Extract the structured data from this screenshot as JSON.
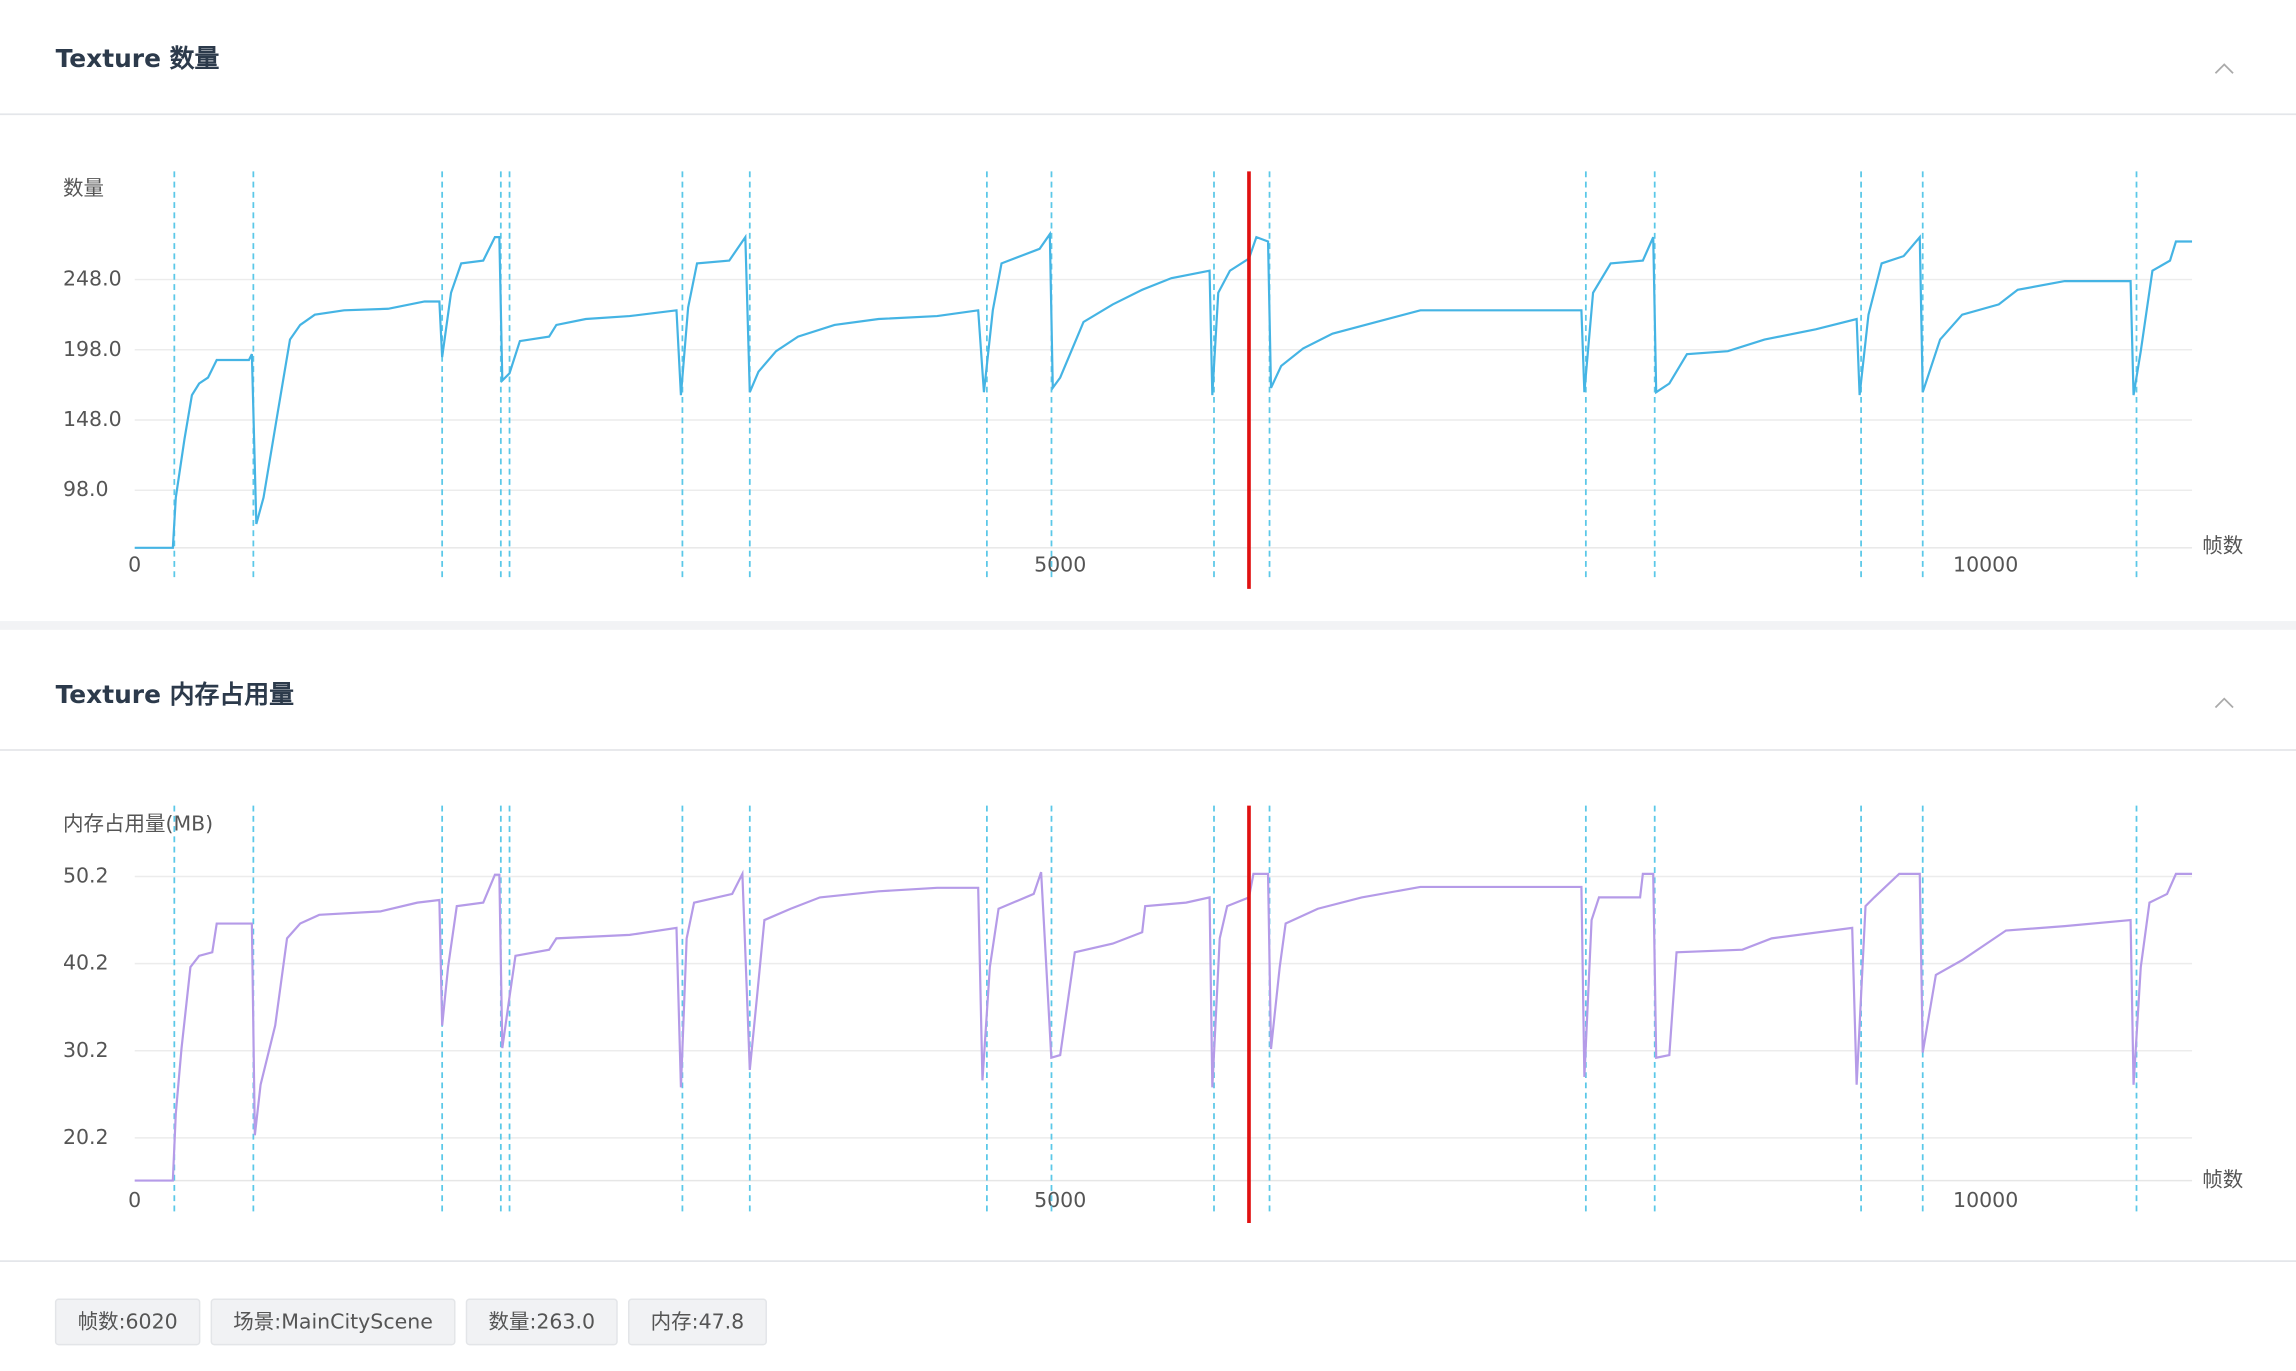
{
  "chart_data": [
    {
      "type": "line",
      "title": "Texture 数量",
      "y_label": "数量",
      "x_label": "帧数",
      "xlim": [
        0,
        11115
      ],
      "xticks": [
        0,
        5000,
        10000
      ],
      "ylim": [
        57,
        300
      ],
      "yticks": [
        {
          "value": 98,
          "label": "98.0"
        },
        {
          "value": 148,
          "label": "148.0"
        },
        {
          "value": 198,
          "label": "198.0"
        },
        {
          "value": 248,
          "label": "248.0"
        }
      ],
      "grid": true,
      "marker_color": "#5bc8e8",
      "cursor": 6020,
      "cursor_color": "#e01010",
      "markers": [
        214,
        641,
        1661,
        1978,
        2025,
        2959,
        3323,
        4604,
        4953,
        5831,
        6131,
        7840,
        8212,
        9327,
        9660,
        10815
      ],
      "series": [
        {
          "color": "#45b4e4",
          "x": [
            0,
            206,
            222,
            269,
            309,
            348,
            396,
            443,
            617,
            633,
            657,
            696,
            775,
            839,
            894,
            973,
            1131,
            1369,
            1566,
            1646,
            1661,
            1709,
            1764,
            1883,
            1946,
            1970,
            1986,
            2025,
            2081,
            2239,
            2278,
            2437,
            2674,
            2927,
            2951,
            2990,
            3038,
            3212,
            3299,
            3323,
            3370,
            3465,
            3584,
            3781,
            4019,
            4335,
            4557,
            4588,
            4636,
            4683,
            4889,
            4944,
            4960,
            5000,
            5126,
            5284,
            5443,
            5601,
            5807,
            5822,
            5854,
            5917,
            6020,
            6060,
            6123,
            6139,
            6194,
            6313,
            6471,
            6709,
            6946,
            7816,
            7832,
            7879,
            7974,
            8148,
            8204,
            8220,
            8291,
            8386,
            8607,
            8805,
            9082,
            9303,
            9319,
            9367,
            9438,
            9557,
            9644,
            9660,
            9754,
            9873,
            10071,
            10173,
            10427,
            10783,
            10799,
            10838,
            10901,
            10996,
            11028,
            11115
          ],
          "values": [
            57,
            57,
            92.8,
            134.5,
            165.7,
            174,
            178.2,
            190.7,
            190.7,
            194.9,
            74,
            92.8,
            155.3,
            205.3,
            215.7,
            223,
            226.1,
            227.2,
            232.4,
            232.4,
            192.8,
            238.6,
            259.5,
            261.5,
            278.2,
            278.2,
            176.1,
            181.3,
            204.2,
            207.4,
            215.7,
            219.9,
            222,
            226.1,
            165.7,
            228.2,
            259.5,
            261.5,
            278.2,
            167.8,
            182.4,
            197,
            207.4,
            215.7,
            219.9,
            222,
            226.1,
            167.8,
            226.1,
            259.5,
            269.9,
            280.3,
            170.9,
            178.2,
            217.8,
            230.3,
            240.7,
            249,
            254.3,
            165.7,
            238.6,
            254.3,
            263,
            278.2,
            275.1,
            170.9,
            186.5,
            199,
            209.5,
            217.8,
            226.1,
            226.1,
            167.8,
            238.6,
            259.5,
            261.5,
            278.2,
            167.8,
            174,
            194.9,
            197,
            205.3,
            212.6,
            219.9,
            165.7,
            223,
            259.5,
            264.7,
            278.2,
            167.8,
            205.3,
            223,
            230.3,
            240.7,
            246.9,
            246.9,
            165.7,
            197,
            254.3,
            261.5,
            275.1,
            275.1
          ]
        }
      ]
    },
    {
      "type": "line",
      "title": "Texture 内存占用量",
      "y_label": "内存占用量(MB)",
      "x_label": "帧数",
      "xlim": [
        0,
        11115
      ],
      "xticks": [
        0,
        5000,
        10000
      ],
      "ylim": [
        15.3,
        58
      ],
      "yticks": [
        20.2,
        30.2,
        40.2,
        50.2
      ],
      "grid": true,
      "marker_color": "#5bc8e8",
      "cursor": 6020,
      "cursor_color": "#e01010",
      "markers": [
        214,
        641,
        1661,
        1978,
        2025,
        2959,
        3323,
        4604,
        4953,
        5831,
        6131,
        7840,
        8212,
        9327,
        9660,
        10815
      ],
      "series": [
        {
          "color": "#b59be8",
          "x": [
            0,
            206,
            222,
            253,
            301,
            348,
            419,
            443,
            617,
            633,
            649,
            680,
            759,
            823,
            894,
            997,
            1329,
            1527,
            1646,
            1661,
            1693,
            1740,
            1883,
            1946,
            1970,
            1986,
            2025,
            2057,
            2239,
            2278,
            2674,
            2927,
            2951,
            2982,
            3022,
            3228,
            3283,
            3323,
            3362,
            3402,
            3544,
            3702,
            4019,
            4335,
            4557,
            4580,
            4620,
            4667,
            4857,
            4897,
            4952,
            5000,
            5079,
            5284,
            5443,
            5459,
            5680,
            5807,
            5822,
            5862,
            5902,
            6020,
            6044,
            6123,
            6139,
            6186,
            6218,
            6392,
            6629,
            6946,
            7816,
            7832,
            7871,
            7911,
            8133,
            8148,
            8204,
            8220,
            8291,
            8330,
            8686,
            8844,
            9279,
            9303,
            9351,
            9398,
            9533,
            9644,
            9660,
            9731,
            9873,
            10110,
            10427,
            10783,
            10799,
            10838,
            10885,
            10980,
            11028,
            11115
          ],
          "values": [
            15.3,
            15.3,
            23.0,
            30.5,
            39.8,
            41.1,
            41.5,
            44.8,
            44.8,
            44.8,
            20.5,
            26.3,
            33.1,
            43.1,
            44.8,
            45.8,
            46.2,
            47.2,
            47.5,
            33.1,
            39.8,
            46.8,
            47.2,
            50.4,
            50.4,
            30.5,
            36.4,
            41.1,
            41.8,
            43.1,
            43.5,
            44.3,
            26.0,
            43.1,
            47.2,
            48.2,
            50.5,
            28.0,
            36.4,
            45.2,
            46.5,
            47.8,
            48.5,
            48.9,
            48.9,
            26.8,
            39.8,
            46.5,
            48.2,
            50.7,
            29.4,
            29.7,
            41.5,
            42.5,
            43.8,
            46.8,
            47.2,
            47.8,
            26.0,
            43.1,
            46.8,
            47.8,
            50.5,
            50.5,
            30.4,
            39.8,
            44.8,
            46.5,
            47.8,
            49.0,
            49.0,
            27.2,
            45.2,
            47.8,
            47.8,
            50.5,
            50.5,
            29.4,
            29.7,
            41.5,
            41.8,
            43.1,
            44.3,
            26.3,
            46.8,
            47.8,
            50.5,
            50.5,
            30.0,
            38.9,
            40.6,
            44.0,
            44.5,
            45.2,
            26.3,
            39.8,
            47.2,
            48.2,
            50.5,
            50.5
          ]
        }
      ]
    }
  ],
  "status_bar": {
    "chips": [
      "帧数:6020",
      "场景:MainCityScene",
      "数量:263.0",
      "内存:47.8"
    ]
  }
}
